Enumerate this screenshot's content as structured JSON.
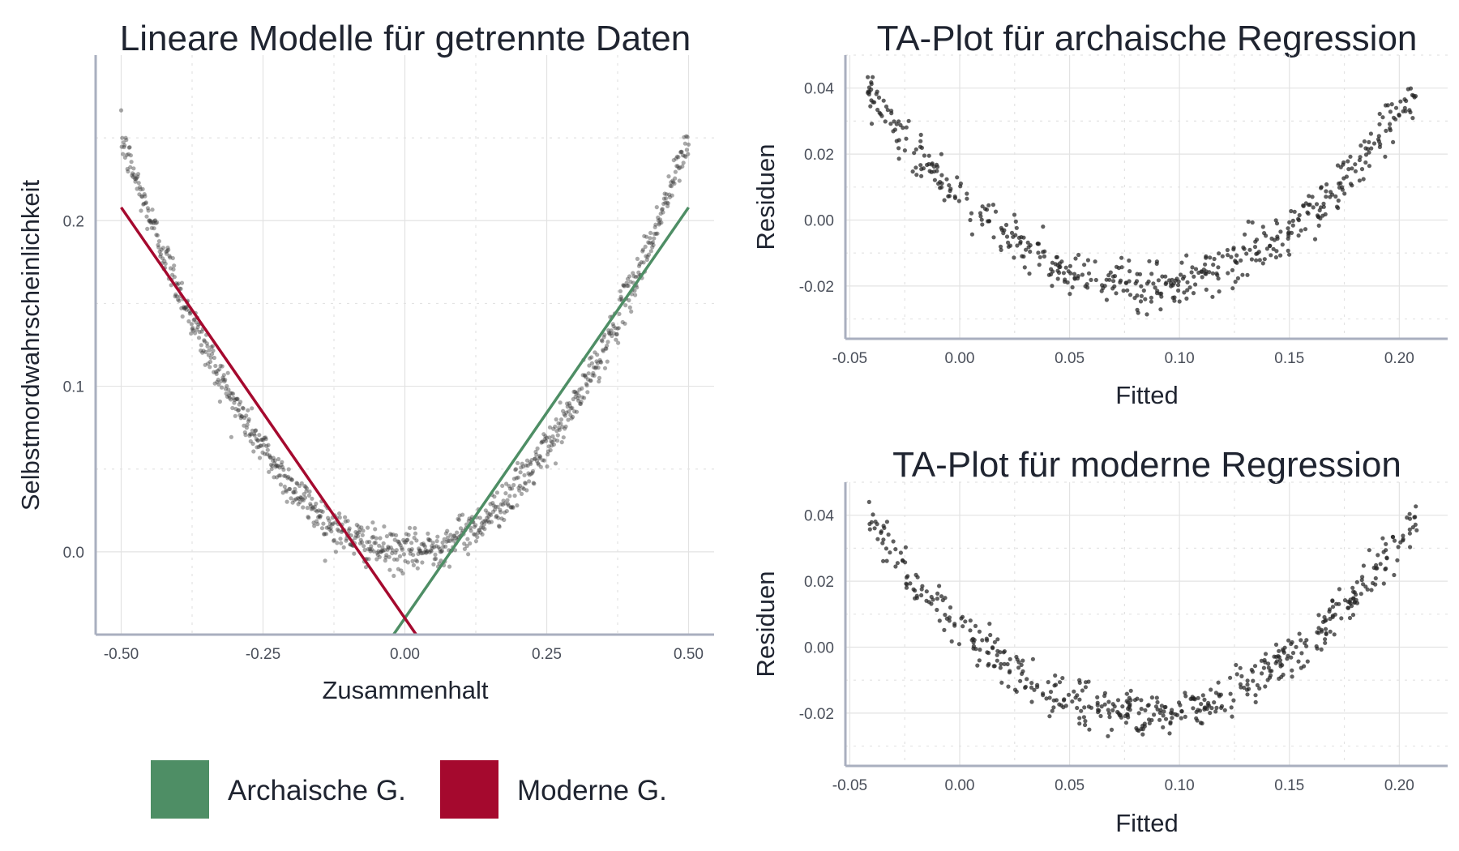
{
  "chart_data": [
    {
      "id": "main",
      "type": "scatter",
      "title": "Lineare Modelle für getrennte Daten",
      "xlabel": "Zusammenhalt",
      "ylabel": "Selbstmordwahrscheinlichkeit",
      "xlim": [
        -0.545,
        0.545
      ],
      "ylim": [
        -0.05,
        0.3
      ],
      "xticks": [
        -0.5,
        -0.25,
        0.0,
        0.25,
        0.5
      ],
      "xtick_labels": [
        "-0.50",
        "-0.25",
        "0.00",
        "0.25",
        "0.50"
      ],
      "yticks": [
        0.0,
        0.1,
        0.2
      ],
      "ytick_labels": [
        "0.0",
        "0.1",
        "0.2"
      ],
      "grid": true,
      "scatter": {
        "n_points": 1000,
        "x_range": [
          -0.5,
          0.5
        ],
        "curve": "y = x^2",
        "noise_sd": 0.006,
        "color": "#333333"
      },
      "lines": [
        {
          "name": "Archaische G.",
          "color": "#4e8e65",
          "x": [
            -0.02,
            0.5
          ],
          "y": [
            -0.05,
            0.208
          ]
        },
        {
          "name": "Moderne G.",
          "color": "#a5092e",
          "x": [
            -0.5,
            0.02
          ],
          "y": [
            0.208,
            -0.05
          ]
        }
      ],
      "legend": {
        "placement": "bottom",
        "entries": [
          {
            "label": "Archaische G.",
            "color": "#4e8e65"
          },
          {
            "label": "Moderne G.",
            "color": "#a5092e"
          }
        ]
      }
    },
    {
      "id": "ta_archaic",
      "type": "scatter",
      "title": "TA-Plot für archaische Regression",
      "xlabel": "Fitted",
      "ylabel": "Residuen",
      "xlim": [
        -0.052,
        0.222
      ],
      "ylim": [
        -0.036,
        0.05
      ],
      "xticks": [
        -0.05,
        0.0,
        0.05,
        0.1,
        0.15,
        0.2
      ],
      "xtick_labels": [
        "-0.05",
        "0.00",
        "0.05",
        "0.10",
        "0.15",
        "0.20"
      ],
      "yticks": [
        -0.02,
        0.0,
        0.02,
        0.04
      ],
      "ytick_labels": [
        "-0.02",
        "0.00",
        "0.02",
        "0.04"
      ],
      "grid": true,
      "scatter": {
        "n_points": 500,
        "x_range": [
          -0.042,
          0.208
        ],
        "curve": "quadratic, min -0.020 at fitted 0.083, 0.040 at ends",
        "noise_sd": 0.0035,
        "color": "#222222"
      }
    },
    {
      "id": "ta_modern",
      "type": "scatter",
      "title": "TA-Plot für moderne Regression",
      "xlabel": "Fitted",
      "ylabel": "Residuen",
      "xlim": [
        -0.052,
        0.222
      ],
      "ylim": [
        -0.036,
        0.05
      ],
      "xticks": [
        -0.05,
        0.0,
        0.05,
        0.1,
        0.15,
        0.2
      ],
      "xtick_labels": [
        "-0.05",
        "0.00",
        "0.05",
        "0.10",
        "0.15",
        "0.20"
      ],
      "yticks": [
        -0.02,
        0.0,
        0.02,
        0.04
      ],
      "ytick_labels": [
        "-0.02",
        "0.00",
        "0.02",
        "0.04"
      ],
      "grid": true,
      "scatter": {
        "n_points": 500,
        "x_range": [
          -0.042,
          0.208
        ],
        "curve": "quadratic, min -0.020 at fitted 0.083, 0.040 at ends",
        "noise_sd": 0.0035,
        "color": "#222222"
      }
    }
  ]
}
